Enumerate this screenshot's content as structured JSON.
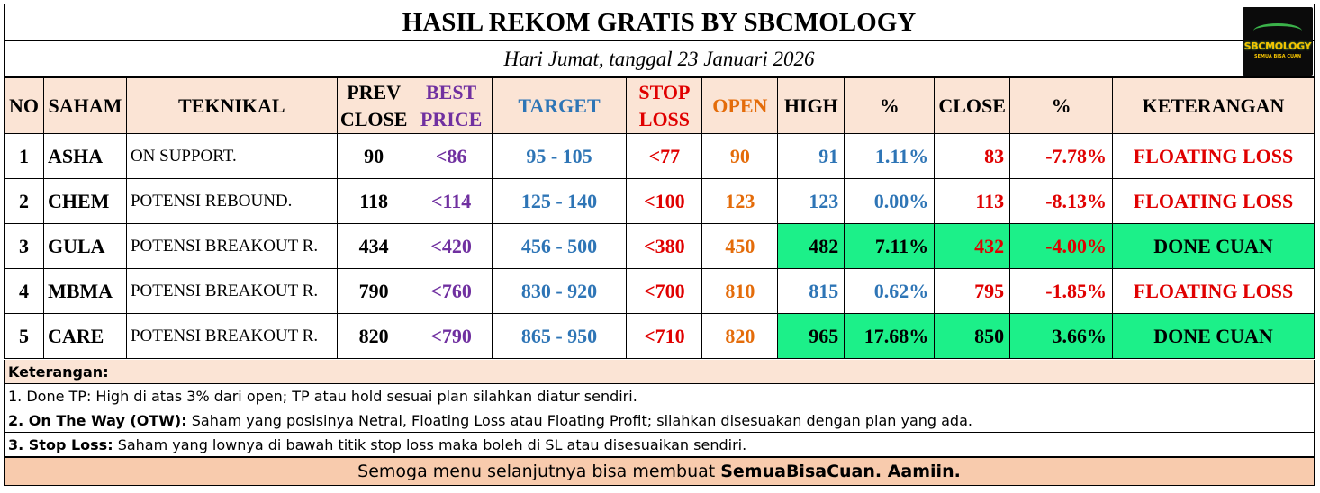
{
  "header": {
    "title": "HASIL REKOM GRATIS BY SBCMOLOGY",
    "date": "Hari Jumat, tanggal 23 Januari 2026",
    "logo_text": "SBCMOLOGY",
    "logo_tag": "SEMUA BISA CUAN"
  },
  "table": {
    "columns": {
      "no": "NO",
      "saham": "SAHAM",
      "teknikal": "TEKNIKAL",
      "prev_close_1": "PREV",
      "prev_close_2": "CLOSE",
      "best_price_1": "BEST",
      "best_price_2": "PRICE",
      "target": "TARGET",
      "stop_loss_1": "STOP",
      "stop_loss_2": "LOSS",
      "open": "OPEN",
      "high": "HIGH",
      "pct_high": "%",
      "close": "CLOSE",
      "pct_close": "%",
      "keterangan": "KETERANGAN"
    },
    "rows": [
      {
        "no": "1",
        "saham": "ASHA",
        "teknikal": "ON SUPPORT.",
        "prev_close": "90",
        "best_price": "<86",
        "target": "95 - 105",
        "stop_loss": "<77",
        "open": "90",
        "high": "91",
        "pct_high": "1.11%",
        "close": "83",
        "pct_close": "-7.78%",
        "keterangan": "FLOATING LOSS"
      },
      {
        "no": "2",
        "saham": "CHEM",
        "teknikal": "POTENSI REBOUND.",
        "prev_close": "118",
        "best_price": "<114",
        "target": "125 - 140",
        "stop_loss": "<100",
        "open": "123",
        "high": "123",
        "pct_high": "0.00%",
        "close": "113",
        "pct_close": "-8.13%",
        "keterangan": "FLOATING LOSS"
      },
      {
        "no": "3",
        "saham": "GULA",
        "teknikal": "POTENSI BREAKOUT R.",
        "prev_close": "434",
        "best_price": "<420",
        "target": "456 - 500",
        "stop_loss": "<380",
        "open": "450",
        "high": "482",
        "pct_high": "7.11%",
        "close": "432",
        "pct_close": "-4.00%",
        "keterangan": "DONE CUAN"
      },
      {
        "no": "4",
        "saham": "MBMA",
        "teknikal": "POTENSI BREAKOUT R.",
        "prev_close": "790",
        "best_price": "<760",
        "target": "830 - 920",
        "stop_loss": "<700",
        "open": "810",
        "high": "815",
        "pct_high": "0.62%",
        "close": "795",
        "pct_close": "-1.85%",
        "keterangan": "FLOATING LOSS"
      },
      {
        "no": "5",
        "saham": "CARE",
        "teknikal": "POTENSI BREAKOUT R.",
        "prev_close": "820",
        "best_price": "<790",
        "target": "865 - 950",
        "stop_loss": "<710",
        "open": "820",
        "high": "965",
        "pct_high": "17.68%",
        "close": "850",
        "pct_close": "3.66%",
        "keterangan": "DONE CUAN"
      }
    ]
  },
  "notes": {
    "heading": "Keterangan:",
    "items": [
      {
        "label": "",
        "text": "1. Done TP: High di atas 3% dari open; TP atau hold sesuai plan silahkan diatur sendiri."
      },
      {
        "label": "2. On The Way (OTW):",
        "text": " Saham yang posisinya Netral, Floating Loss atau Floating Profit; silahkan disesuakan dengan plan yang ada."
      },
      {
        "label": "3. Stop Loss:",
        "text": " Saham yang lownya di bawah titik stop loss maka boleh di SL atau disesuaikan sendiri."
      }
    ]
  },
  "footer": {
    "text": "Semoga menu selanjutnya bisa membuat",
    "bold": "SemuaBisaCuan. Aamiin."
  },
  "colors": {
    "header_bg": "#fbe4d5",
    "done_cuan_bg": "#1cf089",
    "loss_red": "#e00000",
    "best_price_purple": "#7030a0",
    "target_blue": "#2e75b6",
    "open_orange": "#e46c0a",
    "footer_bg": "#f8cbad"
  }
}
